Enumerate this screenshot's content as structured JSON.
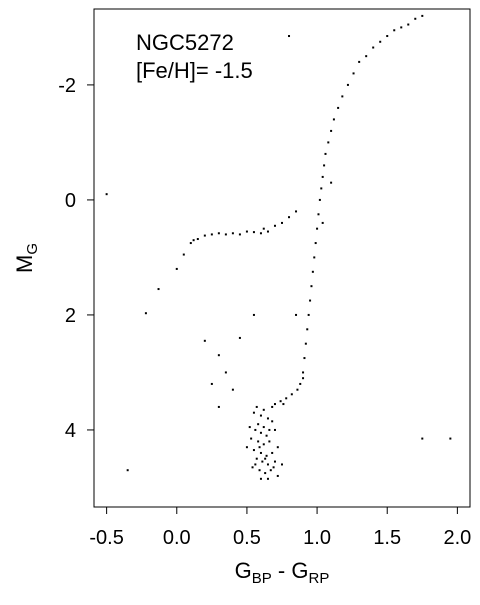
{
  "chart_data": {
    "type": "scatter",
    "annotations": [
      "NGC5272",
      "[Fe/H]= -1.5"
    ],
    "xlabel": [
      "G",
      "BP",
      " - G",
      "RP"
    ],
    "ylabel": [
      "M",
      "G"
    ],
    "color": "#000000",
    "xlim": [
      -0.59,
      2.09
    ],
    "ylim": [
      5.34,
      -3.32
    ],
    "xticks": [
      -0.5,
      {
        "value": 0,
        "label": "0.0"
      },
      0.5,
      {
        "value": 1,
        "label": "1.0"
      },
      1.5,
      {
        "value": 2,
        "label": "2.0"
      }
    ],
    "yticks": [
      -2,
      0,
      2,
      4
    ],
    "x": [
      0.55,
      0.6,
      0.65,
      0.58,
      0.62,
      0.68,
      0.56,
      0.6,
      0.64,
      0.7,
      0.53,
      0.58,
      0.62,
      0.66,
      0.72,
      0.55,
      0.6,
      0.64,
      0.68,
      0.57,
      0.61,
      0.65,
      0.7,
      0.54,
      0.59,
      0.63,
      0.67,
      0.6,
      0.65,
      0.72,
      0.5,
      0.75,
      0.57,
      0.62,
      0.52,
      0.66,
      0.59,
      0.63,
      0.56,
      0.69,
      0.7,
      0.74,
      0.78,
      0.82,
      0.86,
      0.88,
      0.9,
      0.68,
      0.76,
      0.9,
      0.91,
      0.92,
      0.93,
      0.94,
      0.95,
      0.96,
      0.97,
      0.98,
      0.99,
      1.0,
      1.01,
      1.02,
      1.03,
      1.04,
      1.05,
      1.06,
      1.08,
      1.1,
      1.12,
      1.15,
      1.18,
      1.22,
      1.26,
      1.3,
      1.35,
      1.4,
      1.45,
      1.5,
      1.55,
      1.6,
      1.65,
      1.7,
      1.75,
      1.04,
      1.1,
      0.0,
      0.05,
      0.1,
      0.15,
      0.2,
      0.25,
      0.3,
      0.4,
      0.45,
      0.5,
      0.55,
      0.6,
      0.62,
      0.65,
      0.7,
      0.75,
      0.8,
      0.85,
      0.12,
      0.35,
      0.2,
      0.3,
      0.35,
      0.25,
      0.4,
      0.45,
      0.3,
      -0.5,
      -0.22,
      -0.35,
      1.75,
      1.95,
      0.8,
      0.85,
      0.55,
      -0.13
    ],
    "y": [
      3.7,
      3.75,
      3.8,
      3.9,
      3.95,
      3.85,
      4.0,
      4.05,
      4.1,
      4.0,
      4.15,
      4.2,
      4.25,
      4.2,
      4.3,
      4.35,
      4.4,
      4.45,
      4.4,
      4.5,
      4.55,
      4.6,
      4.55,
      4.65,
      4.7,
      4.75,
      4.7,
      4.85,
      4.85,
      4.8,
      4.3,
      4.6,
      3.6,
      3.65,
      3.95,
      4.0,
      4.3,
      4.5,
      4.6,
      4.65,
      3.55,
      3.5,
      3.45,
      3.38,
      3.3,
      3.2,
      3.1,
      3.6,
      3.55,
      3.0,
      2.75,
      2.5,
      2.25,
      2.0,
      1.75,
      1.5,
      1.25,
      1.0,
      0.75,
      0.5,
      0.25,
      0.0,
      -0.2,
      -0.4,
      -0.6,
      -0.8,
      -1.0,
      -1.2,
      -1.4,
      -1.6,
      -1.8,
      -2.0,
      -2.2,
      -2.4,
      -2.5,
      -2.65,
      -2.75,
      -2.85,
      -2.95,
      -3.0,
      -3.05,
      -3.15,
      -3.2,
      0.4,
      -0.3,
      1.2,
      0.95,
      0.75,
      0.68,
      0.62,
      0.6,
      0.58,
      0.58,
      0.6,
      0.55,
      0.56,
      0.58,
      0.5,
      0.55,
      0.45,
      0.4,
      0.3,
      0.2,
      0.7,
      0.6,
      2.45,
      2.7,
      3.0,
      3.2,
      3.3,
      2.4,
      3.6,
      -0.1,
      1.97,
      4.7,
      4.15,
      4.15,
      -2.85,
      2.0,
      2.0,
      1.55
    ]
  }
}
